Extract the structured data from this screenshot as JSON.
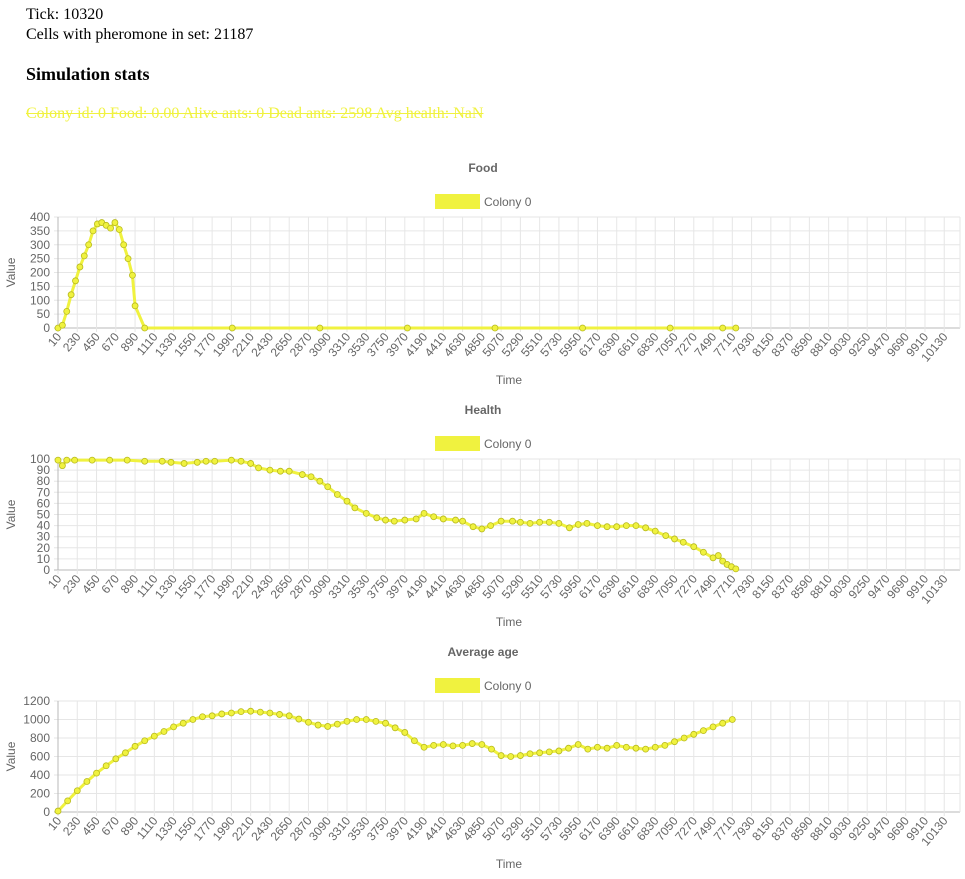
{
  "header": {
    "tick_label": "Tick:",
    "tick_value": "10320",
    "cells_label": "Cells with pheromone in set:",
    "cells_value": "21187",
    "stats_heading": "Simulation stats",
    "colony_stats": "Colony id: 0 Food: 0.00 Alive ants: 0 Dead ants: 2598 Avg health: NaN"
  },
  "colors": {
    "series": "#f0f23f",
    "point_border": "#b8ba1e",
    "grid": "#e6e6e6",
    "axis": "#b9b9b9",
    "text": "#666666"
  },
  "chart_data": [
    {
      "type": "line",
      "title": "Food",
      "xlabel": "Time",
      "ylabel": "Value",
      "legend": "top-center",
      "grid": true,
      "x_ticks": [
        10,
        230,
        450,
        670,
        890,
        1110,
        1330,
        1550,
        1770,
        1990,
        2210,
        2430,
        2650,
        2870,
        3090,
        3310,
        3530,
        3750,
        3970,
        4190,
        4410,
        4630,
        4850,
        5070,
        5290,
        5510,
        5730,
        5950,
        6170,
        6390,
        6610,
        6830,
        7050,
        7270,
        7490,
        7710,
        7930,
        8150,
        8370,
        8590,
        8810,
        9030,
        9250,
        9470,
        9690,
        9910,
        10130
      ],
      "xlim": [
        10,
        10310
      ],
      "ylim": [
        0,
        400
      ],
      "y_ticks": [
        0,
        50,
        100,
        150,
        200,
        250,
        300,
        350,
        400
      ],
      "series": [
        {
          "name": "Colony 0",
          "x": [
            10,
            60,
            110,
            160,
            210,
            260,
            310,
            360,
            410,
            460,
            510,
            560,
            610,
            660,
            710,
            760,
            810,
            860,
            890,
            1000,
            2000,
            3000,
            4000,
            5000,
            6000,
            7000,
            7600,
            7750
          ],
          "y": [
            0,
            10,
            60,
            120,
            170,
            220,
            260,
            300,
            350,
            375,
            380,
            370,
            360,
            380,
            355,
            300,
            250,
            190,
            80,
            0,
            0,
            0,
            0,
            0,
            0,
            0,
            0,
            0
          ]
        }
      ]
    },
    {
      "type": "line",
      "title": "Health",
      "xlabel": "Time",
      "ylabel": "Value",
      "legend": "top-center",
      "grid": true,
      "x_ticks": [
        10,
        230,
        450,
        670,
        890,
        1110,
        1330,
        1550,
        1770,
        1990,
        2210,
        2430,
        2650,
        2870,
        3090,
        3310,
        3530,
        3750,
        3970,
        4190,
        4410,
        4630,
        4850,
        5070,
        5290,
        5510,
        5730,
        5950,
        6170,
        6390,
        6610,
        6830,
        7050,
        7270,
        7490,
        7710,
        7930,
        8150,
        8370,
        8590,
        8810,
        9030,
        9250,
        9470,
        9690,
        9910,
        10130
      ],
      "xlim": [
        10,
        10310
      ],
      "ylim": [
        0,
        100
      ],
      "y_ticks": [
        0,
        10,
        20,
        30,
        40,
        50,
        60,
        70,
        80,
        90,
        100
      ],
      "series": [
        {
          "name": "Colony 0",
          "x": [
            10,
            60,
            110,
            200,
            400,
            600,
            800,
            1000,
            1200,
            1300,
            1450,
            1600,
            1700,
            1800,
            1990,
            2100,
            2210,
            2300,
            2430,
            2550,
            2650,
            2800,
            2900,
            3000,
            3090,
            3200,
            3310,
            3400,
            3530,
            3650,
            3750,
            3850,
            3970,
            4100,
            4190,
            4300,
            4410,
            4550,
            4630,
            4750,
            4850,
            4950,
            5070,
            5200,
            5290,
            5400,
            5510,
            5620,
            5730,
            5850,
            5950,
            6050,
            6170,
            6280,
            6390,
            6500,
            6610,
            6720,
            6830,
            6950,
            7050,
            7150,
            7270,
            7380,
            7490,
            7550,
            7600,
            7650,
            7700,
            7750
          ],
          "y": [
            99,
            94,
            99,
            99,
            99,
            99,
            99,
            98,
            98,
            97,
            96,
            97,
            98,
            98,
            99,
            98,
            96,
            92,
            90,
            89,
            89,
            86,
            84,
            80,
            75,
            68,
            62,
            56,
            51,
            47,
            45,
            44,
            45,
            46,
            51,
            48,
            46,
            45,
            44,
            39,
            37,
            40,
            44,
            44,
            43,
            42,
            43,
            43,
            42,
            38,
            41,
            42,
            40,
            39,
            39,
            40,
            40,
            38,
            35,
            31,
            28,
            25,
            21,
            16,
            11,
            13,
            8,
            5,
            3,
            1
          ]
        }
      ]
    },
    {
      "type": "line",
      "title": "Average age",
      "xlabel": "Time",
      "ylabel": "Value",
      "legend": "top-center",
      "grid": true,
      "x_ticks": [
        10,
        230,
        450,
        670,
        890,
        1110,
        1330,
        1550,
        1770,
        1990,
        2210,
        2430,
        2650,
        2870,
        3090,
        3310,
        3530,
        3750,
        3970,
        4190,
        4410,
        4630,
        4850,
        5070,
        5290,
        5510,
        5730,
        5950,
        6170,
        6390,
        6610,
        6830,
        7050,
        7270,
        7490,
        7710,
        7930,
        8150,
        8370,
        8590,
        8810,
        9030,
        9250,
        9470,
        9690,
        9910,
        10130
      ],
      "xlim": [
        10,
        10310
      ],
      "ylim": [
        0,
        1200
      ],
      "y_ticks": [
        0,
        200,
        400,
        600,
        800,
        1000,
        1200
      ],
      "series": [
        {
          "name": "Colony 0",
          "x": [
            10,
            120,
            230,
            340,
            450,
            560,
            670,
            780,
            890,
            1000,
            1110,
            1220,
            1330,
            1440,
            1550,
            1660,
            1770,
            1880,
            1990,
            2100,
            2210,
            2320,
            2430,
            2540,
            2650,
            2760,
            2870,
            2980,
            3090,
            3200,
            3310,
            3420,
            3530,
            3640,
            3750,
            3860,
            3970,
            4080,
            4190,
            4300,
            4410,
            4520,
            4630,
            4740,
            4850,
            4960,
            5070,
            5180,
            5290,
            5400,
            5510,
            5620,
            5730,
            5840,
            5950,
            6060,
            6170,
            6280,
            6390,
            6500,
            6610,
            6720,
            6830,
            6940,
            7050,
            7160,
            7270,
            7380,
            7490,
            7600,
            7710
          ],
          "y": [
            10,
            120,
            230,
            330,
            420,
            500,
            575,
            640,
            710,
            770,
            820,
            870,
            920,
            960,
            1000,
            1030,
            1040,
            1060,
            1070,
            1085,
            1090,
            1080,
            1070,
            1055,
            1040,
            1005,
            970,
            940,
            925,
            950,
            980,
            1000,
            1000,
            980,
            960,
            910,
            860,
            770,
            700,
            720,
            730,
            715,
            720,
            740,
            730,
            680,
            610,
            600,
            610,
            630,
            640,
            650,
            660,
            690,
            730,
            680,
            700,
            690,
            720,
            700,
            690,
            680,
            700,
            720,
            760,
            800,
            840,
            880,
            920,
            960,
            1000
          ]
        }
      ]
    }
  ]
}
